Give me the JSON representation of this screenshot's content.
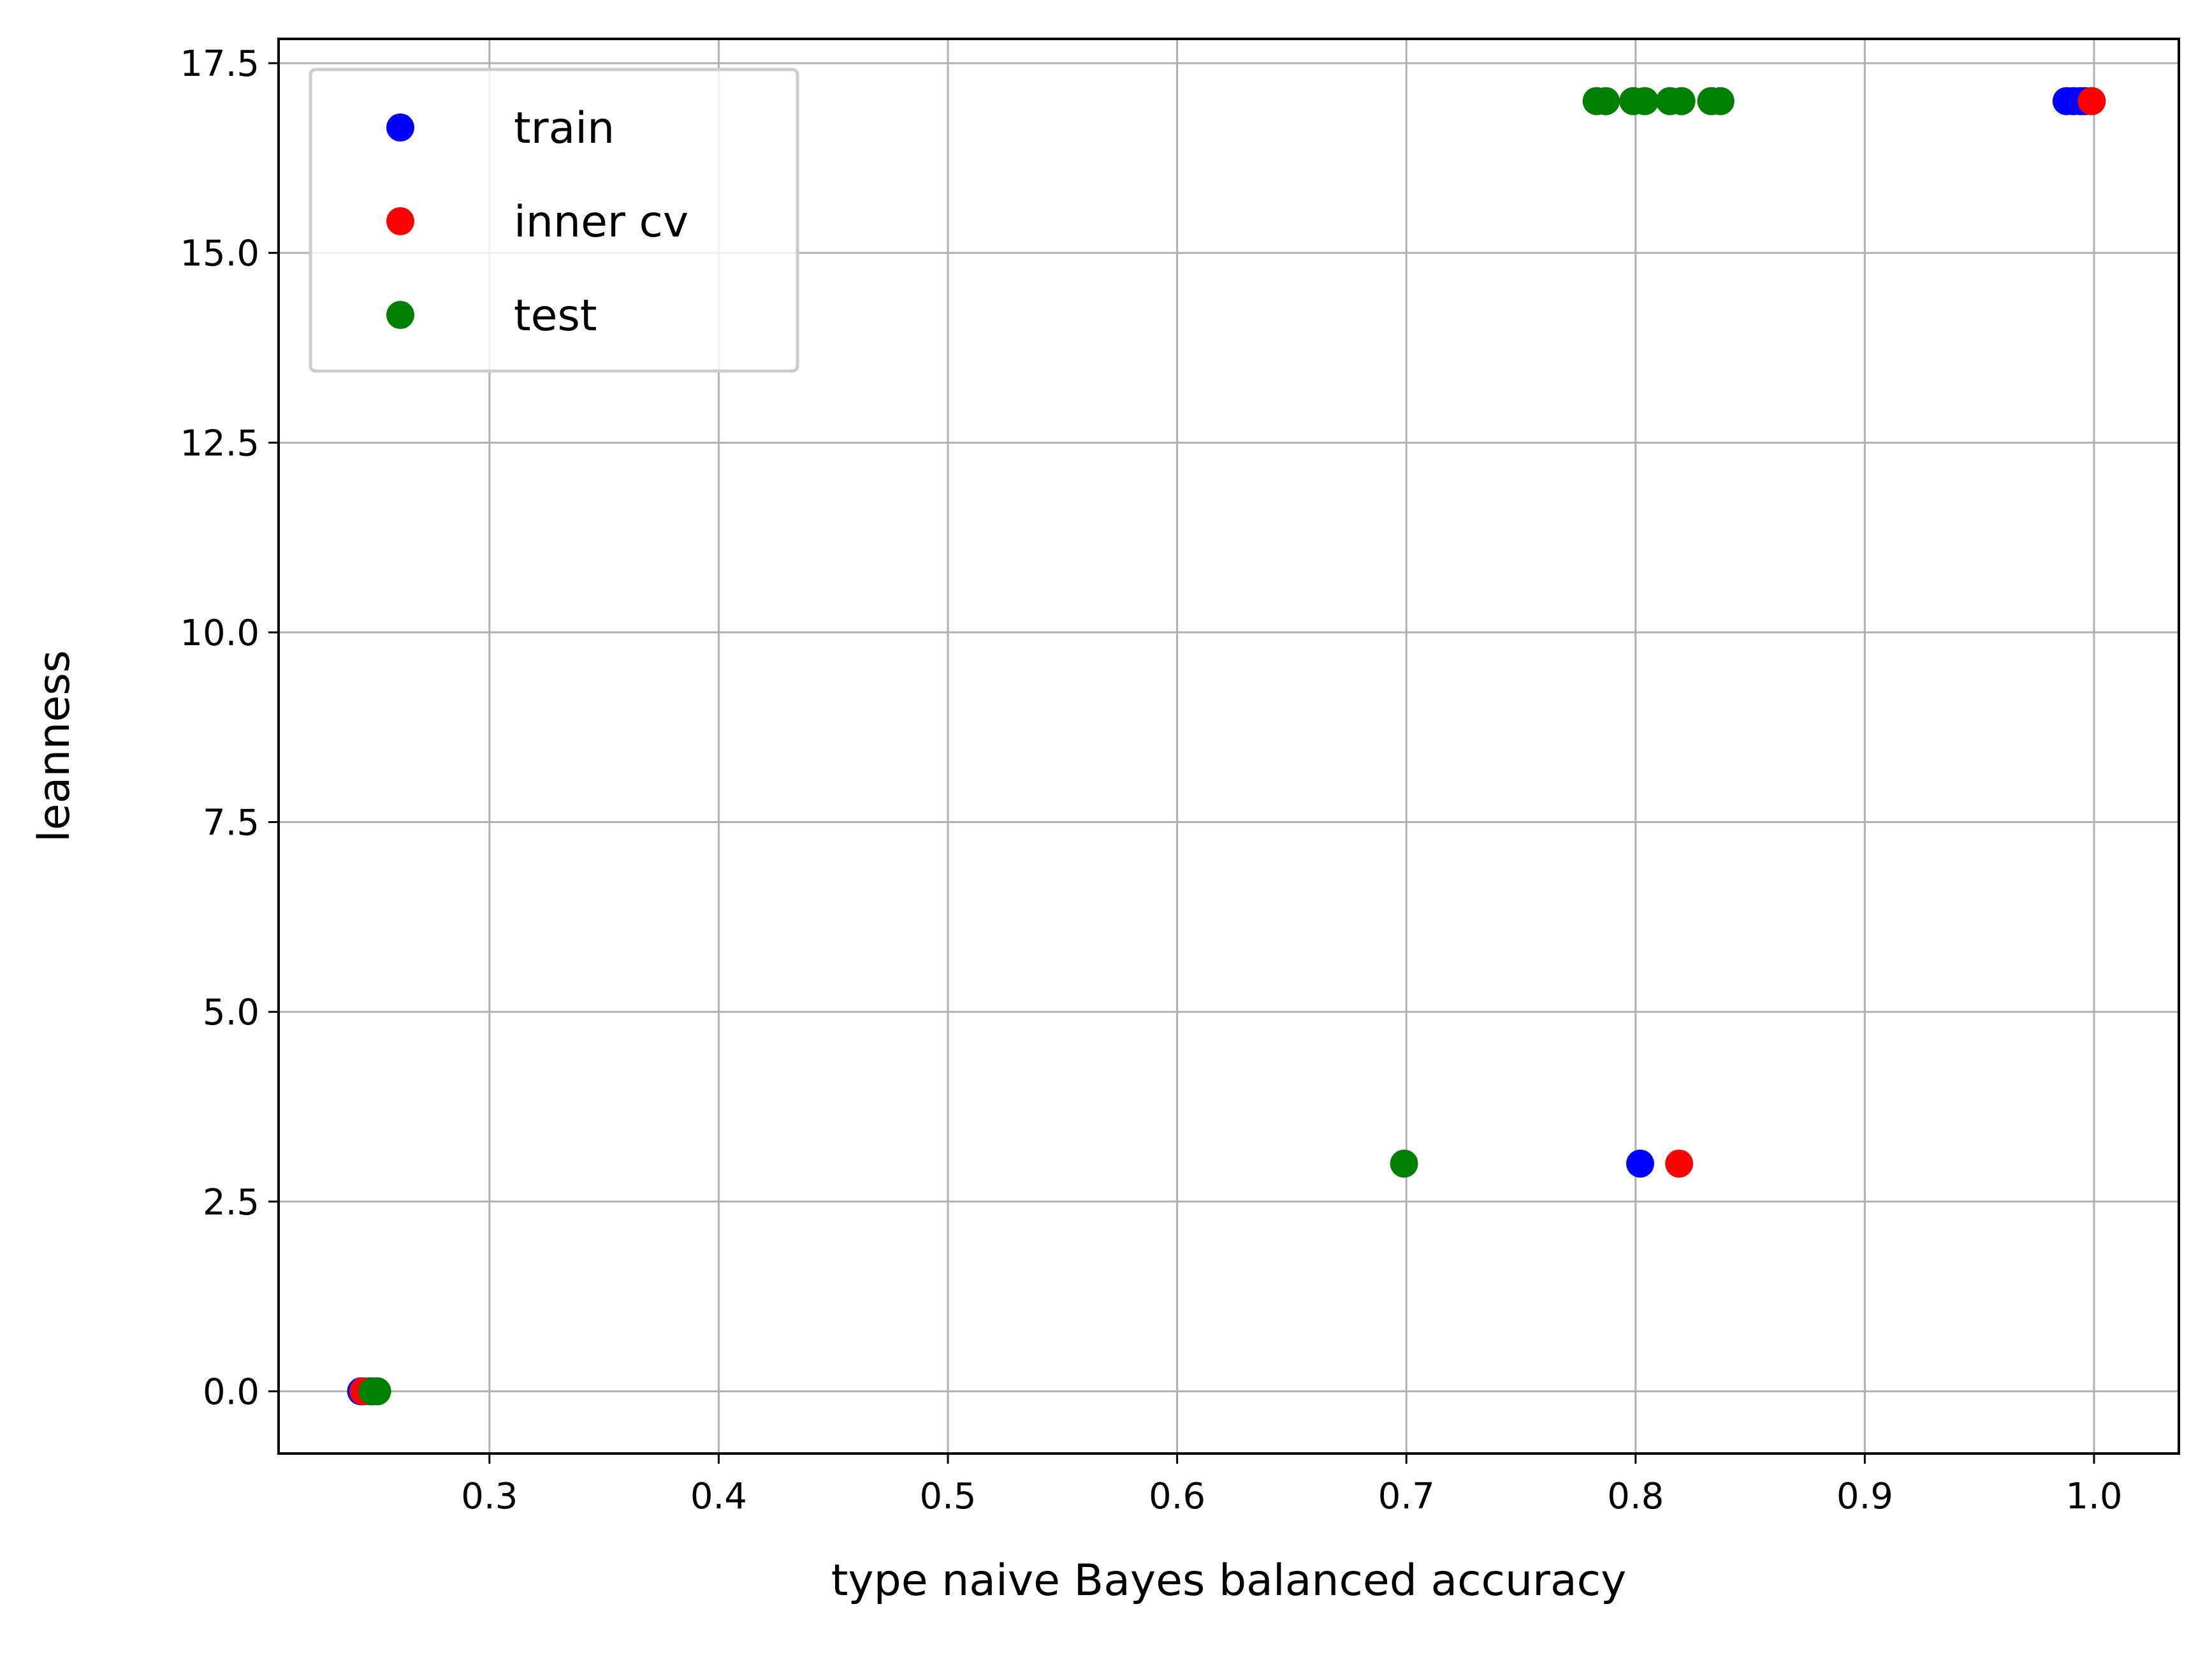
{
  "chart_data": {
    "type": "scatter",
    "title": "",
    "xlabel": "type naive Bayes balanced accuracy",
    "ylabel": "leanness",
    "xlim": [
      0.208,
      1.037
    ],
    "ylim": [
      -0.82,
      17.82
    ],
    "grid": true,
    "legend_position": "upper-left",
    "x_ticks": [
      0.3,
      0.4,
      0.5,
      0.6,
      0.7,
      0.8,
      0.9,
      1.0
    ],
    "x_tick_labels": [
      "0.3",
      "0.4",
      "0.5",
      "0.6",
      "0.7",
      "0.8",
      "0.9",
      "1.0"
    ],
    "y_ticks": [
      0.0,
      2.5,
      5.0,
      7.5,
      10.0,
      12.5,
      15.0,
      17.5
    ],
    "y_tick_labels": [
      "0.0",
      "2.5",
      "5.0",
      "7.5",
      "10.0",
      "12.5",
      "15.0",
      "17.5"
    ],
    "series": [
      {
        "name": "train",
        "color": "#0000ff",
        "points": [
          {
            "x": 0.244,
            "y": 0
          },
          {
            "x": 0.248,
            "y": 0
          },
          {
            "x": 0.802,
            "y": 3
          },
          {
            "x": 0.988,
            "y": 17
          },
          {
            "x": 0.991,
            "y": 17
          },
          {
            "x": 0.994,
            "y": 17
          },
          {
            "x": 0.996,
            "y": 17
          }
        ]
      },
      {
        "name": "inner cv",
        "color": "#ff0000",
        "points": [
          {
            "x": 0.245,
            "y": 0
          },
          {
            "x": 0.819,
            "y": 3
          },
          {
            "x": 0.999,
            "y": 17
          }
        ]
      },
      {
        "name": "test",
        "color": "#008000",
        "points": [
          {
            "x": 0.249,
            "y": 0
          },
          {
            "x": 0.251,
            "y": 0
          },
          {
            "x": 0.699,
            "y": 3
          },
          {
            "x": 0.783,
            "y": 17
          },
          {
            "x": 0.787,
            "y": 17
          },
          {
            "x": 0.799,
            "y": 17
          },
          {
            "x": 0.804,
            "y": 17
          },
          {
            "x": 0.815,
            "y": 17
          },
          {
            "x": 0.82,
            "y": 17
          },
          {
            "x": 0.833,
            "y": 17
          },
          {
            "x": 0.837,
            "y": 17
          }
        ]
      }
    ]
  }
}
